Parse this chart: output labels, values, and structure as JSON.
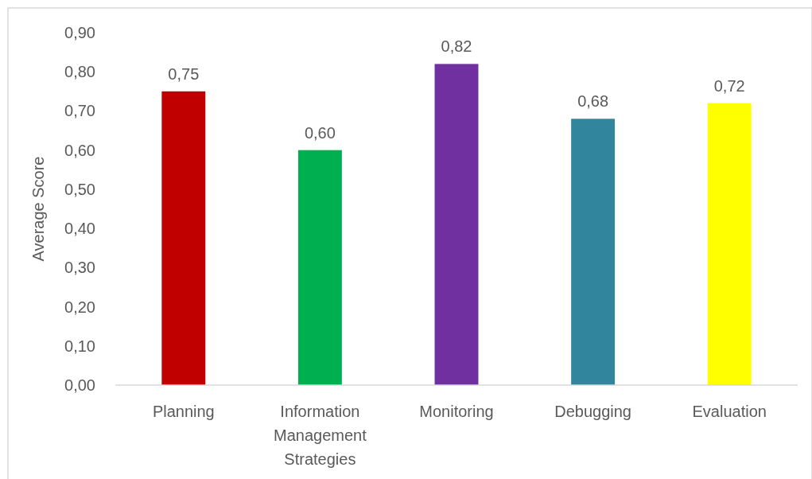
{
  "chart_data": {
    "type": "bar",
    "ylabel": "Average Score",
    "categories": [
      "Planning",
      "Information Management Strategies",
      "Monitoring",
      "Debugging",
      "Evaluation"
    ],
    "values": [
      0.75,
      0.6,
      0.82,
      0.68,
      0.72
    ],
    "colors": [
      "#c00000",
      "#00b050",
      "#7030a0",
      "#31859c",
      "#ffff00"
    ],
    "value_labels": [
      "0,75",
      "0,60",
      "0,82",
      "0,68",
      "0,72"
    ],
    "ylim": [
      0,
      0.9
    ],
    "yticks": [
      {
        "value": 0,
        "label": "0,00"
      },
      {
        "value": 0.1,
        "label": "0,10"
      },
      {
        "value": 0.2,
        "label": "0,20"
      },
      {
        "value": 0.3,
        "label": "0,30"
      },
      {
        "value": 0.4,
        "label": "0,40"
      },
      {
        "value": 0.5,
        "label": "0,50"
      },
      {
        "value": 0.6,
        "label": "0,60"
      },
      {
        "value": 0.7,
        "label": "0,70"
      },
      {
        "value": 0.8,
        "label": "0,80"
      },
      {
        "value": 0.9,
        "label": "0,90"
      }
    ],
    "grid": false
  }
}
